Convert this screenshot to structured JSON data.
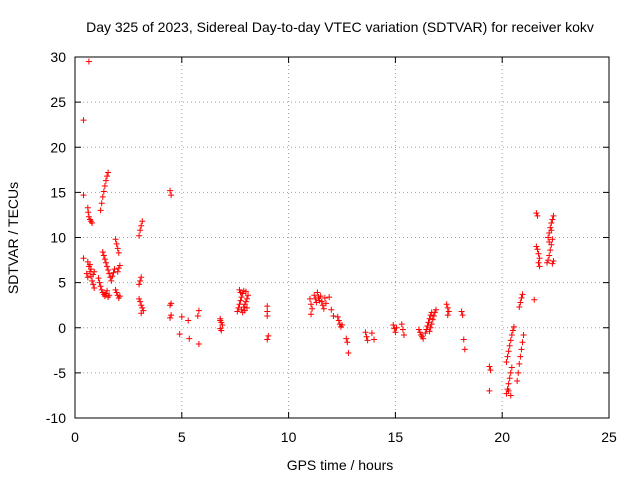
{
  "chart_data": {
    "type": "scatter",
    "title": "Day 325 of 2023, Sidereal Day-to-day VTEC variation (SDTVAR) for receiver kokv",
    "xlabel": "GPS time / hours",
    "ylabel": "SDTVAR / TECUs",
    "xlim": [
      0,
      25
    ],
    "ylim": [
      -10,
      30
    ],
    "xticks": [
      0,
      5,
      10,
      15,
      20,
      25
    ],
    "yticks": [
      -10,
      -5,
      0,
      5,
      10,
      15,
      20,
      25,
      30
    ],
    "xtick_labels": [
      "0",
      "5",
      "10",
      "15",
      "20",
      "25"
    ],
    "ytick_labels": [
      "-10",
      "-5",
      "0",
      "5",
      "10",
      "15",
      "20",
      "25",
      "30"
    ],
    "grid": true,
    "marker": "+",
    "marker_color": "#ff0000",
    "series": [
      {
        "name": "SDTVAR",
        "points": [
          [
            0.4,
            14.7
          ],
          [
            0.4,
            7.7
          ],
          [
            0.4,
            23.0
          ],
          [
            0.65,
            29.5
          ],
          [
            0.6,
            13.3
          ],
          [
            0.62,
            12.8
          ],
          [
            0.65,
            12.3
          ],
          [
            0.7,
            12.0
          ],
          [
            0.75,
            11.8
          ],
          [
            0.8,
            11.6
          ],
          [
            0.6,
            7.3
          ],
          [
            0.65,
            6.8
          ],
          [
            0.7,
            6.2
          ],
          [
            0.75,
            5.7
          ],
          [
            0.8,
            5.2
          ],
          [
            0.85,
            4.8
          ],
          [
            0.9,
            4.4
          ],
          [
            0.55,
            6.0
          ],
          [
            0.6,
            5.6
          ],
          [
            0.7,
            7.0
          ],
          [
            0.75,
            6.5
          ],
          [
            0.85,
            5.9
          ],
          [
            0.9,
            6.2
          ],
          [
            1.1,
            5.5
          ],
          [
            1.15,
            5.0
          ],
          [
            1.2,
            4.6
          ],
          [
            1.25,
            4.2
          ],
          [
            1.3,
            3.9
          ],
          [
            1.35,
            3.7
          ],
          [
            1.4,
            3.5
          ],
          [
            1.45,
            3.8
          ],
          [
            1.5,
            4.1
          ],
          [
            1.55,
            3.4
          ],
          [
            1.6,
            3.6
          ],
          [
            1.2,
            13.0
          ],
          [
            1.25,
            13.8
          ],
          [
            1.3,
            14.5
          ],
          [
            1.35,
            15.1
          ],
          [
            1.4,
            15.7
          ],
          [
            1.45,
            16.3
          ],
          [
            1.5,
            16.8
          ],
          [
            1.55,
            17.2
          ],
          [
            1.3,
            8.4
          ],
          [
            1.35,
            8.0
          ],
          [
            1.4,
            7.6
          ],
          [
            1.45,
            7.2
          ],
          [
            1.5,
            6.8
          ],
          [
            1.55,
            6.4
          ],
          [
            1.6,
            6.0
          ],
          [
            1.65,
            5.6
          ],
          [
            1.7,
            5.2
          ],
          [
            1.75,
            5.7
          ],
          [
            1.8,
            6.1
          ],
          [
            1.85,
            6.5
          ],
          [
            1.9,
            9.8
          ],
          [
            1.95,
            9.3
          ],
          [
            2.0,
            8.8
          ],
          [
            2.05,
            8.3
          ],
          [
            1.9,
            4.2
          ],
          [
            1.95,
            3.9
          ],
          [
            2.0,
            3.6
          ],
          [
            2.05,
            3.3
          ],
          [
            2.1,
            3.5
          ],
          [
            2.0,
            6.2
          ],
          [
            2.05,
            6.6
          ],
          [
            2.1,
            6.9
          ],
          [
            3.0,
            10.2
          ],
          [
            3.05,
            10.8
          ],
          [
            3.1,
            11.3
          ],
          [
            3.15,
            11.8
          ],
          [
            3.0,
            4.8
          ],
          [
            3.05,
            5.2
          ],
          [
            3.1,
            5.6
          ],
          [
            3.0,
            3.2
          ],
          [
            3.05,
            2.9
          ],
          [
            3.1,
            2.5
          ],
          [
            3.15,
            2.2
          ],
          [
            3.2,
            1.9
          ],
          [
            3.1,
            1.6
          ],
          [
            4.45,
            15.2
          ],
          [
            4.5,
            14.7
          ],
          [
            4.5,
            2.7
          ],
          [
            4.45,
            2.5
          ],
          [
            4.5,
            1.4
          ],
          [
            4.45,
            1.1
          ],
          [
            4.9,
            -0.7
          ],
          [
            5.0,
            1.2
          ],
          [
            5.3,
            0.8
          ],
          [
            5.35,
            -1.2
          ],
          [
            5.8,
            1.9
          ],
          [
            5.75,
            1.3
          ],
          [
            5.8,
            -1.8
          ],
          [
            6.8,
            1.0
          ],
          [
            6.85,
            0.6
          ],
          [
            6.9,
            0.3
          ],
          [
            6.8,
            -0.1
          ],
          [
            6.85,
            -0.3
          ],
          [
            6.8,
            0.8
          ],
          [
            7.6,
            1.8
          ],
          [
            7.65,
            2.2
          ],
          [
            7.7,
            2.6
          ],
          [
            7.75,
            3.0
          ],
          [
            7.8,
            3.4
          ],
          [
            7.85,
            3.8
          ],
          [
            7.9,
            4.1
          ],
          [
            7.7,
            4.2
          ],
          [
            7.75,
            3.9
          ],
          [
            7.8,
            2.0
          ],
          [
            7.85,
            1.7
          ],
          [
            7.9,
            2.3
          ],
          [
            7.95,
            2.6
          ],
          [
            8.0,
            2.9
          ],
          [
            8.05,
            3.2
          ],
          [
            8.1,
            3.6
          ],
          [
            8.0,
            4.0
          ],
          [
            7.95,
            1.9
          ],
          [
            8.05,
            2.2
          ],
          [
            9.0,
            2.4
          ],
          [
            9.0,
            1.8
          ],
          [
            9.0,
            1.3
          ],
          [
            9.05,
            -0.9
          ],
          [
            9.0,
            -1.3
          ],
          [
            11.0,
            3.2
          ],
          [
            11.05,
            2.6
          ],
          [
            11.1,
            2.1
          ],
          [
            11.05,
            1.5
          ],
          [
            11.2,
            3.6
          ],
          [
            11.25,
            3.2
          ],
          [
            11.3,
            2.8
          ],
          [
            11.35,
            3.9
          ],
          [
            11.4,
            3.4
          ],
          [
            11.45,
            3.0
          ],
          [
            11.5,
            3.5
          ],
          [
            11.55,
            2.9
          ],
          [
            11.6,
            2.5
          ],
          [
            11.65,
            2.1
          ],
          [
            11.7,
            3.3
          ],
          [
            11.75,
            2.7
          ],
          [
            11.9,
            3.4
          ],
          [
            12.0,
            2.0
          ],
          [
            12.1,
            1.3
          ],
          [
            12.3,
            1.2
          ],
          [
            12.35,
            0.8
          ],
          [
            12.4,
            0.4
          ],
          [
            12.45,
            0.1
          ],
          [
            12.5,
            0.3
          ],
          [
            12.7,
            -1.2
          ],
          [
            12.75,
            -1.6
          ],
          [
            12.8,
            -2.8
          ],
          [
            13.6,
            -0.5
          ],
          [
            13.65,
            -1.0
          ],
          [
            13.7,
            -1.4
          ],
          [
            13.9,
            -0.6
          ],
          [
            14.0,
            -1.3
          ],
          [
            14.9,
            0.3
          ],
          [
            14.95,
            -0.1
          ],
          [
            15.0,
            -0.5
          ],
          [
            15.05,
            0.0
          ],
          [
            15.3,
            0.4
          ],
          [
            15.35,
            -0.2
          ],
          [
            15.4,
            -0.8
          ],
          [
            16.1,
            -0.2
          ],
          [
            16.15,
            -0.5
          ],
          [
            16.2,
            -0.8
          ],
          [
            16.25,
            -1.0
          ],
          [
            16.3,
            -1.2
          ],
          [
            16.4,
            -0.6
          ],
          [
            16.45,
            -0.2
          ],
          [
            16.5,
            0.2
          ],
          [
            16.55,
            0.6
          ],
          [
            16.6,
            1.0
          ],
          [
            16.65,
            1.4
          ],
          [
            16.7,
            1.7
          ],
          [
            16.6,
            -0.4
          ],
          [
            16.65,
            0.0
          ],
          [
            16.7,
            0.4
          ],
          [
            16.75,
            0.9
          ],
          [
            16.8,
            1.3
          ],
          [
            16.85,
            1.7
          ],
          [
            16.9,
            2.0
          ],
          [
            17.4,
            2.6
          ],
          [
            17.45,
            2.2
          ],
          [
            17.5,
            1.8
          ],
          [
            17.45,
            1.4
          ],
          [
            18.1,
            1.8
          ],
          [
            18.15,
            1.4
          ],
          [
            18.2,
            -1.3
          ],
          [
            18.25,
            -2.4
          ],
          [
            19.4,
            -4.3
          ],
          [
            19.45,
            -4.7
          ],
          [
            19.4,
            -7.0
          ],
          [
            20.2,
            -7.3
          ],
          [
            20.25,
            -6.8
          ],
          [
            20.3,
            -6.2
          ],
          [
            20.35,
            -5.6
          ],
          [
            20.4,
            -5.0
          ],
          [
            20.45,
            -4.4
          ],
          [
            20.2,
            -3.8
          ],
          [
            20.25,
            -3.2
          ],
          [
            20.3,
            -2.6
          ],
          [
            20.35,
            -2.0
          ],
          [
            20.4,
            -1.4
          ],
          [
            20.45,
            -0.8
          ],
          [
            20.5,
            -0.3
          ],
          [
            20.55,
            0.1
          ],
          [
            20.4,
            -7.5
          ],
          [
            20.3,
            -7.0
          ],
          [
            20.7,
            -5.9
          ],
          [
            20.75,
            -5.0
          ],
          [
            20.8,
            -4.0
          ],
          [
            20.85,
            -3.2
          ],
          [
            20.9,
            -2.4
          ],
          [
            20.95,
            -1.6
          ],
          [
            21.0,
            -0.8
          ],
          [
            20.8,
            2.3
          ],
          [
            20.85,
            2.8
          ],
          [
            20.9,
            3.3
          ],
          [
            20.95,
            3.7
          ],
          [
            21.5,
            3.1
          ],
          [
            21.6,
            12.7
          ],
          [
            21.65,
            12.4
          ],
          [
            21.6,
            9.0
          ],
          [
            21.65,
            8.7
          ],
          [
            21.7,
            8.2
          ],
          [
            21.75,
            7.7
          ],
          [
            21.7,
            7.2
          ],
          [
            21.75,
            6.8
          ],
          [
            22.1,
            7.2
          ],
          [
            22.15,
            7.5
          ],
          [
            22.2,
            8.0
          ],
          [
            22.25,
            8.6
          ],
          [
            22.3,
            9.2
          ],
          [
            22.35,
            9.8
          ],
          [
            22.2,
            10.5
          ],
          [
            22.25,
            11.1
          ],
          [
            22.3,
            11.6
          ],
          [
            22.35,
            12.0
          ],
          [
            22.4,
            12.4
          ],
          [
            22.15,
            10.0
          ],
          [
            22.2,
            9.5
          ],
          [
            22.3,
            10.8
          ],
          [
            22.35,
            7.1
          ],
          [
            22.4,
            7.4
          ]
        ]
      }
    ]
  }
}
